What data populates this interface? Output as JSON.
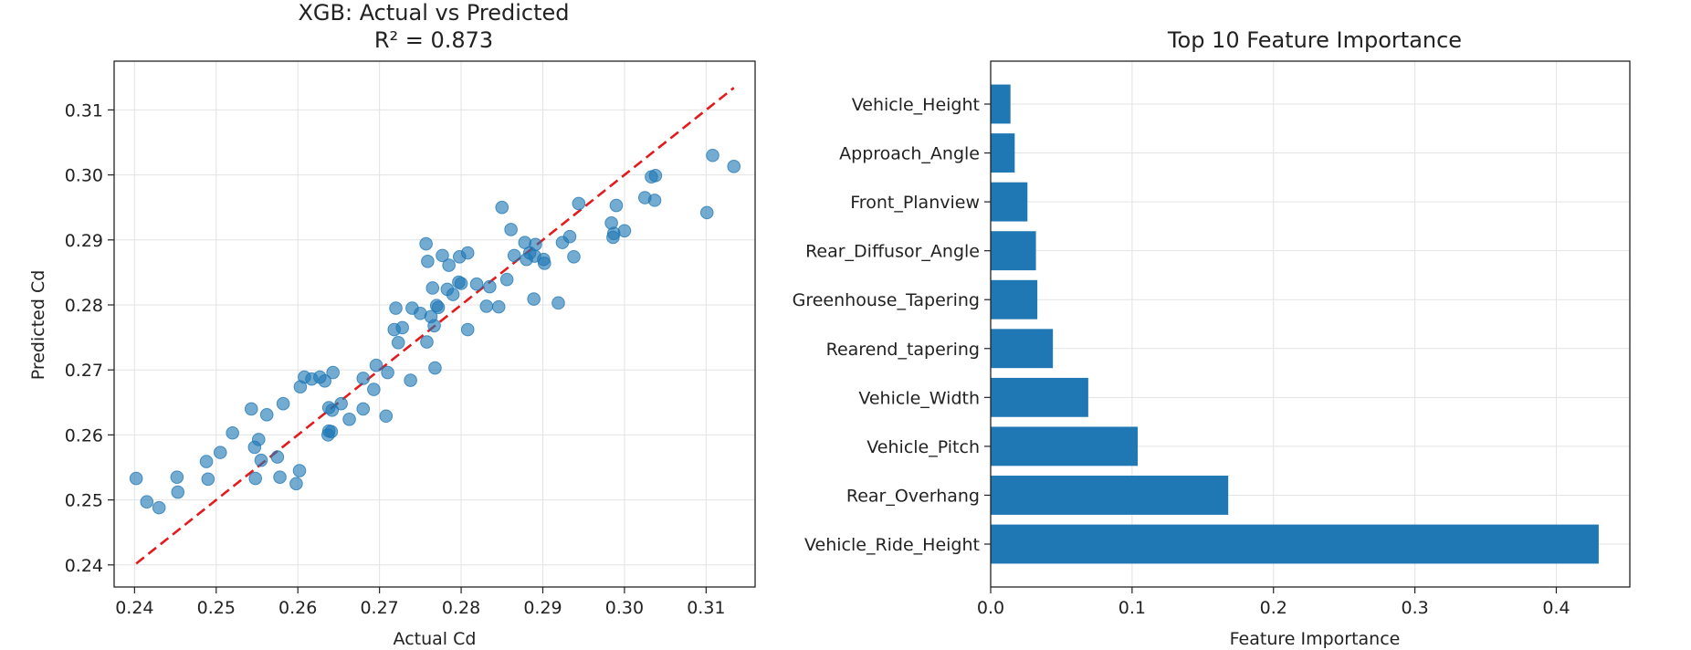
{
  "chart_data": [
    {
      "type": "scatter",
      "title": "XGB: Actual vs Predicted",
      "subtitle": "R² = 0.873",
      "xlabel": "Actual Cd",
      "ylabel": "Predicted Cd",
      "xlim": [
        0.2375,
        0.316
      ],
      "ylim": [
        0.2366,
        0.3175
      ],
      "xticks": [
        "0.24",
        "0.25",
        "0.26",
        "0.27",
        "0.28",
        "0.29",
        "0.30",
        "0.31"
      ],
      "yticks": [
        "0.24",
        "0.25",
        "0.26",
        "0.27",
        "0.28",
        "0.29",
        "0.30",
        "0.31"
      ],
      "grid": true,
      "point_color": "#1f77b4",
      "reference_line": {
        "from": [
          0.2402,
          0.2402
        ],
        "to": [
          0.3134,
          0.3134
        ],
        "style": "dashed",
        "color": "#e41a1c"
      },
      "points": [
        [
          0.2402,
          0.2533
        ],
        [
          0.2415,
          0.2497
        ],
        [
          0.243,
          0.2488
        ],
        [
          0.2452,
          0.2535
        ],
        [
          0.2453,
          0.2512
        ],
        [
          0.2488,
          0.2559
        ],
        [
          0.249,
          0.2532
        ],
        [
          0.2505,
          0.2573
        ],
        [
          0.252,
          0.2603
        ],
        [
          0.2543,
          0.264
        ],
        [
          0.2547,
          0.2581
        ],
        [
          0.2548,
          0.2533
        ],
        [
          0.2552,
          0.2593
        ],
        [
          0.2555,
          0.2561
        ],
        [
          0.2562,
          0.2631
        ],
        [
          0.2575,
          0.2566
        ],
        [
          0.2578,
          0.2535
        ],
        [
          0.2582,
          0.2648
        ],
        [
          0.2598,
          0.2525
        ],
        [
          0.2602,
          0.2545
        ],
        [
          0.2603,
          0.2674
        ],
        [
          0.2608,
          0.2689
        ],
        [
          0.2617,
          0.2686
        ],
        [
          0.2627,
          0.2689
        ],
        [
          0.2633,
          0.2683
        ],
        [
          0.2637,
          0.26
        ],
        [
          0.2638,
          0.2606
        ],
        [
          0.2638,
          0.2642
        ],
        [
          0.2641,
          0.2605
        ],
        [
          0.2642,
          0.2638
        ],
        [
          0.2643,
          0.2696
        ],
        [
          0.2653,
          0.2648
        ],
        [
          0.2663,
          0.2624
        ],
        [
          0.268,
          0.264
        ],
        [
          0.268,
          0.2687
        ],
        [
          0.2693,
          0.267
        ],
        [
          0.2696,
          0.2707
        ],
        [
          0.2708,
          0.2629
        ],
        [
          0.271,
          0.2696
        ],
        [
          0.2718,
          0.2762
        ],
        [
          0.272,
          0.2795
        ],
        [
          0.2723,
          0.2742
        ],
        [
          0.2728,
          0.2765
        ],
        [
          0.2738,
          0.2684
        ],
        [
          0.274,
          0.2795
        ],
        [
          0.275,
          0.2787
        ],
        [
          0.2757,
          0.2894
        ],
        [
          0.2758,
          0.2743
        ],
        [
          0.2759,
          0.2867
        ],
        [
          0.2763,
          0.2782
        ],
        [
          0.2765,
          0.2826
        ],
        [
          0.2767,
          0.2768
        ],
        [
          0.2768,
          0.2703
        ],
        [
          0.277,
          0.2799
        ],
        [
          0.2772,
          0.2796
        ],
        [
          0.2777,
          0.2876
        ],
        [
          0.2783,
          0.2824
        ],
        [
          0.2785,
          0.2861
        ],
        [
          0.279,
          0.2816
        ],
        [
          0.2797,
          0.2835
        ],
        [
          0.2798,
          0.2874
        ],
        [
          0.28,
          0.2833
        ],
        [
          0.2808,
          0.2762
        ],
        [
          0.2808,
          0.288
        ],
        [
          0.2819,
          0.2832
        ],
        [
          0.2831,
          0.2798
        ],
        [
          0.2835,
          0.2828
        ],
        [
          0.2846,
          0.2797
        ],
        [
          0.285,
          0.295
        ],
        [
          0.2856,
          0.2839
        ],
        [
          0.2861,
          0.2916
        ],
        [
          0.2865,
          0.2876
        ],
        [
          0.2878,
          0.2896
        ],
        [
          0.288,
          0.287
        ],
        [
          0.2884,
          0.288
        ],
        [
          0.2889,
          0.2809
        ],
        [
          0.289,
          0.2875
        ],
        [
          0.2891,
          0.2893
        ],
        [
          0.2901,
          0.287
        ],
        [
          0.2902,
          0.2864
        ],
        [
          0.2919,
          0.2803
        ],
        [
          0.2924,
          0.2896
        ],
        [
          0.2933,
          0.2905
        ],
        [
          0.2938,
          0.2874
        ],
        [
          0.2944,
          0.2956
        ],
        [
          0.2984,
          0.2926
        ],
        [
          0.2986,
          0.2904
        ],
        [
          0.2987,
          0.291
        ],
        [
          0.299,
          0.2953
        ],
        [
          0.3,
          0.2914
        ],
        [
          0.3025,
          0.2965
        ],
        [
          0.3033,
          0.2997
        ],
        [
          0.3037,
          0.2961
        ],
        [
          0.3038,
          0.2999
        ],
        [
          0.3101,
          0.2942
        ],
        [
          0.3108,
          0.303
        ],
        [
          0.3134,
          0.3013
        ]
      ]
    },
    {
      "type": "bar",
      "orientation": "horizontal",
      "title": "Top 10 Feature Importance",
      "xlabel": "Feature Importance",
      "xlim": [
        0,
        0.452
      ],
      "xticks": [
        "0.0",
        "0.1",
        "0.2",
        "0.3",
        "0.4"
      ],
      "grid": true,
      "bar_color": "#1f77b4",
      "categories": [
        "Vehicle_Height",
        "Approach_Angle",
        "Front_Planview",
        "Rear_Diffusor_Angle",
        "Greenhouse_Tapering",
        "Rearend_tapering",
        "Vehicle_Width",
        "Vehicle_Pitch",
        "Rear_Overhang",
        "Vehicle_Ride_Height"
      ],
      "values": [
        0.014,
        0.017,
        0.026,
        0.032,
        0.033,
        0.044,
        0.069,
        0.104,
        0.168,
        0.43
      ]
    }
  ]
}
